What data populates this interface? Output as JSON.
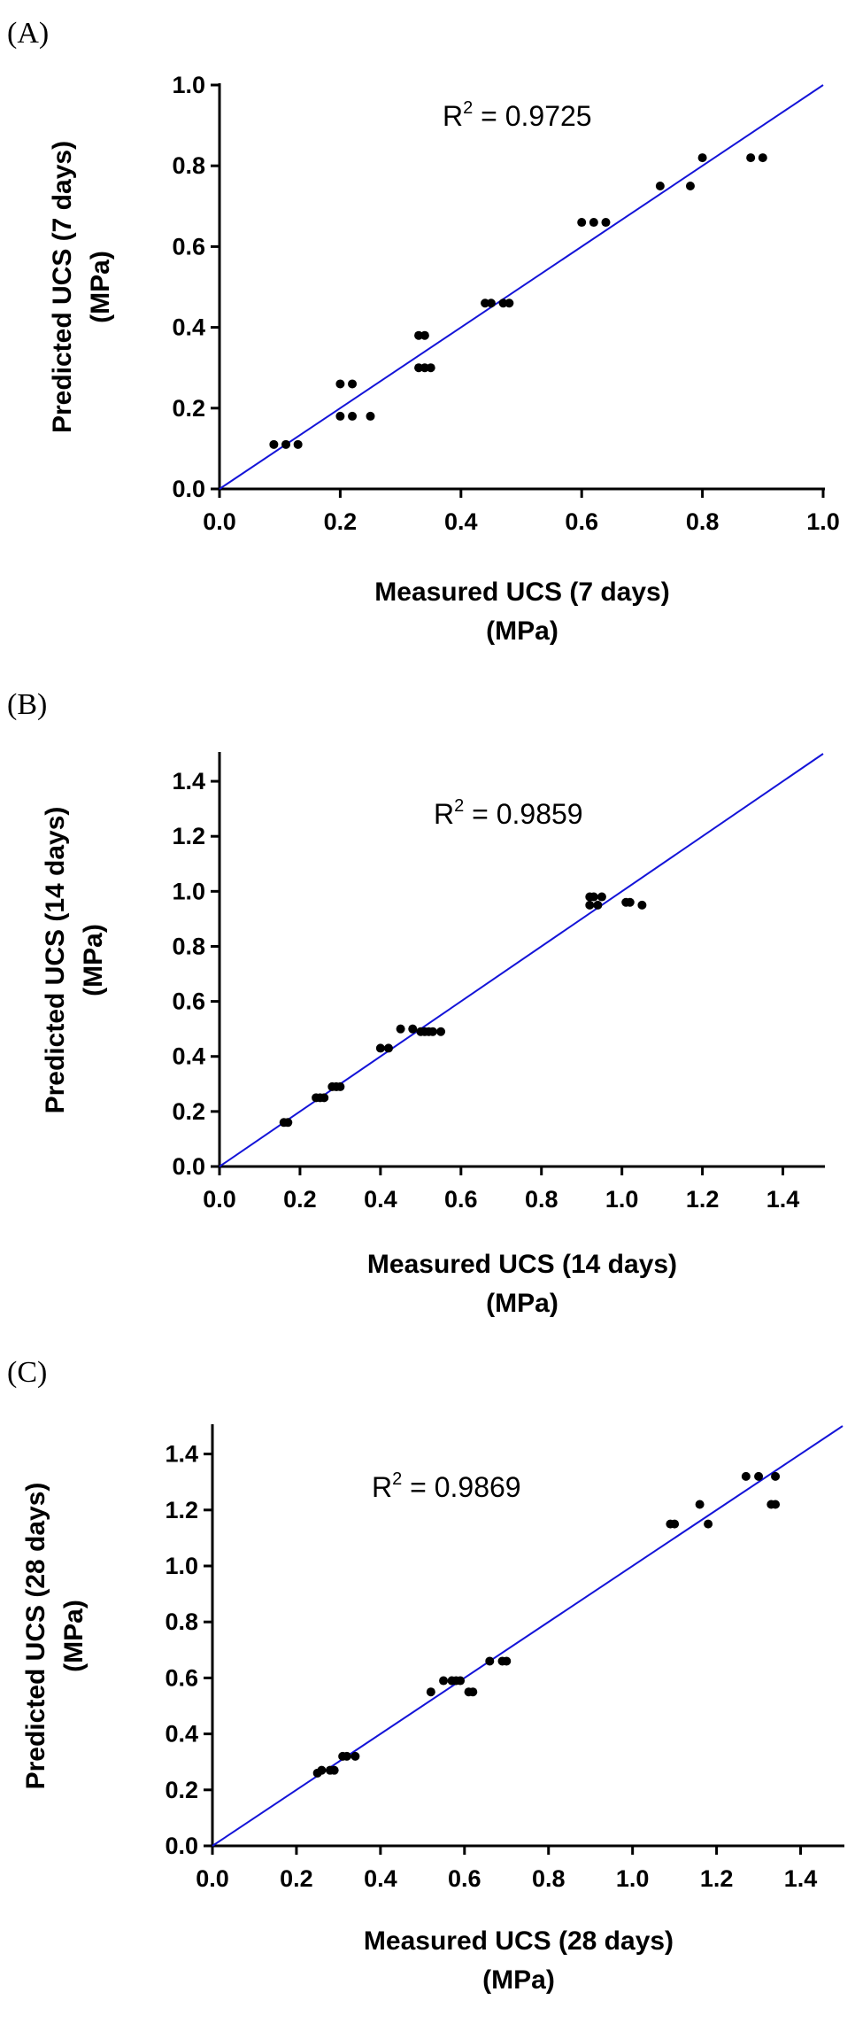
{
  "chart_data": [
    {
      "type": "scatter",
      "panel_label": "(A)",
      "title": "",
      "xlabel": [
        "Measured UCS (7 days)",
        "(MPa)"
      ],
      "ylabel": [
        "Predicted UCS (7 days)",
        "(MPa)"
      ],
      "xlim": [
        0,
        1.0
      ],
      "ylim": [
        0,
        1.0
      ],
      "xticks": [
        0.0,
        0.2,
        0.4,
        0.6,
        0.8,
        1.0
      ],
      "yticks": [
        0.0,
        0.2,
        0.4,
        0.6,
        0.8,
        1.0
      ],
      "xtick_labels": [
        "0.0",
        "0.2",
        "0.4",
        "0.6",
        "0.8",
        "1.0"
      ],
      "ytick_labels": [
        "0.0",
        "0.2",
        "0.4",
        "0.6",
        "0.8",
        "1.0"
      ],
      "r2_label": "R",
      "r2_sup": "2",
      "r2_value": " = 0.9725",
      "fit_line": [
        [
          0,
          0
        ],
        [
          1.0,
          1.0
        ]
      ],
      "x": [
        0.09,
        0.11,
        0.13,
        0.2,
        0.22,
        0.2,
        0.22,
        0.25,
        0.33,
        0.34,
        0.33,
        0.34,
        0.35,
        0.44,
        0.45,
        0.47,
        0.48,
        0.6,
        0.62,
        0.64,
        0.73,
        0.78,
        0.8,
        0.88,
        0.9
      ],
      "y": [
        0.11,
        0.11,
        0.11,
        0.26,
        0.26,
        0.18,
        0.18,
        0.18,
        0.38,
        0.38,
        0.3,
        0.3,
        0.3,
        0.46,
        0.46,
        0.46,
        0.46,
        0.66,
        0.66,
        0.66,
        0.75,
        0.75,
        0.82,
        0.82,
        0.82
      ]
    },
    {
      "type": "scatter",
      "panel_label": "(B)",
      "title": "",
      "xlabel": [
        "Measured UCS (14 days)",
        "(MPa)"
      ],
      "ylabel": [
        "Predicted UCS (14 days)",
        "(MPa)"
      ],
      "xlim": [
        0,
        1.5
      ],
      "ylim": [
        0,
        1.5
      ],
      "xticks": [
        0.0,
        0.2,
        0.4,
        0.6,
        0.8,
        1.0,
        1.2,
        1.4
      ],
      "yticks": [
        0.0,
        0.2,
        0.4,
        0.6,
        0.8,
        1.0,
        1.2,
        1.4
      ],
      "xtick_labels": [
        "0.0",
        "0.2",
        "0.4",
        "0.6",
        "0.8",
        "1.0",
        "1.2",
        "1.4"
      ],
      "ytick_labels": [
        "0.0",
        "0.2",
        "0.4",
        "0.6",
        "0.8",
        "1.0",
        "1.2",
        "1.4"
      ],
      "r2_label": "R",
      "r2_sup": "2",
      "r2_value": " = 0.9859",
      "fit_line": [
        [
          0,
          0
        ],
        [
          1.5,
          1.5
        ]
      ],
      "x": [
        0.16,
        0.17,
        0.24,
        0.25,
        0.26,
        0.28,
        0.29,
        0.3,
        0.4,
        0.42,
        0.45,
        0.48,
        0.5,
        0.51,
        0.52,
        0.53,
        0.55,
        0.92,
        0.93,
        0.95,
        0.92,
        0.94,
        1.01,
        1.02,
        1.05
      ],
      "y": [
        0.16,
        0.16,
        0.25,
        0.25,
        0.25,
        0.29,
        0.29,
        0.29,
        0.43,
        0.43,
        0.5,
        0.5,
        0.49,
        0.49,
        0.49,
        0.49,
        0.49,
        0.98,
        0.98,
        0.98,
        0.95,
        0.95,
        0.96,
        0.96,
        0.95
      ]
    },
    {
      "type": "scatter",
      "panel_label": "(C)",
      "title": "",
      "xlabel": [
        "Measured UCS (28 days)",
        "(MPa)"
      ],
      "ylabel": [
        "Predicted UCS (28 days)",
        "(MPa)"
      ],
      "xlim": [
        0,
        1.5
      ],
      "ylim": [
        0,
        1.5
      ],
      "xticks": [
        0.0,
        0.2,
        0.4,
        0.6,
        0.8,
        1.0,
        1.2,
        1.4
      ],
      "yticks": [
        0.0,
        0.2,
        0.4,
        0.6,
        0.8,
        1.0,
        1.2,
        1.4
      ],
      "xtick_labels": [
        "0.0",
        "0.2",
        "0.4",
        "0.6",
        "0.8",
        "1.0",
        "1.2",
        "1.4"
      ],
      "ytick_labels": [
        "0.0",
        "0.2",
        "0.4",
        "0.6",
        "0.8",
        "1.0",
        "1.2",
        "1.4"
      ],
      "r2_label": "R",
      "r2_sup": "2",
      "r2_value": " = 0.9869",
      "fit_line": [
        [
          0,
          0
        ],
        [
          1.5,
          1.5
        ]
      ],
      "x": [
        0.25,
        0.26,
        0.28,
        0.29,
        0.31,
        0.32,
        0.34,
        0.52,
        0.55,
        0.57,
        0.58,
        0.59,
        0.61,
        0.62,
        0.66,
        0.69,
        0.7,
        1.09,
        1.1,
        1.16,
        1.18,
        1.27,
        1.3,
        1.33,
        1.34,
        1.34
      ],
      "y": [
        0.26,
        0.27,
        0.27,
        0.27,
        0.32,
        0.32,
        0.32,
        0.55,
        0.59,
        0.59,
        0.59,
        0.59,
        0.55,
        0.55,
        0.66,
        0.66,
        0.66,
        1.15,
        1.15,
        1.22,
        1.15,
        1.32,
        1.32,
        1.22,
        1.22,
        1.32
      ]
    }
  ]
}
